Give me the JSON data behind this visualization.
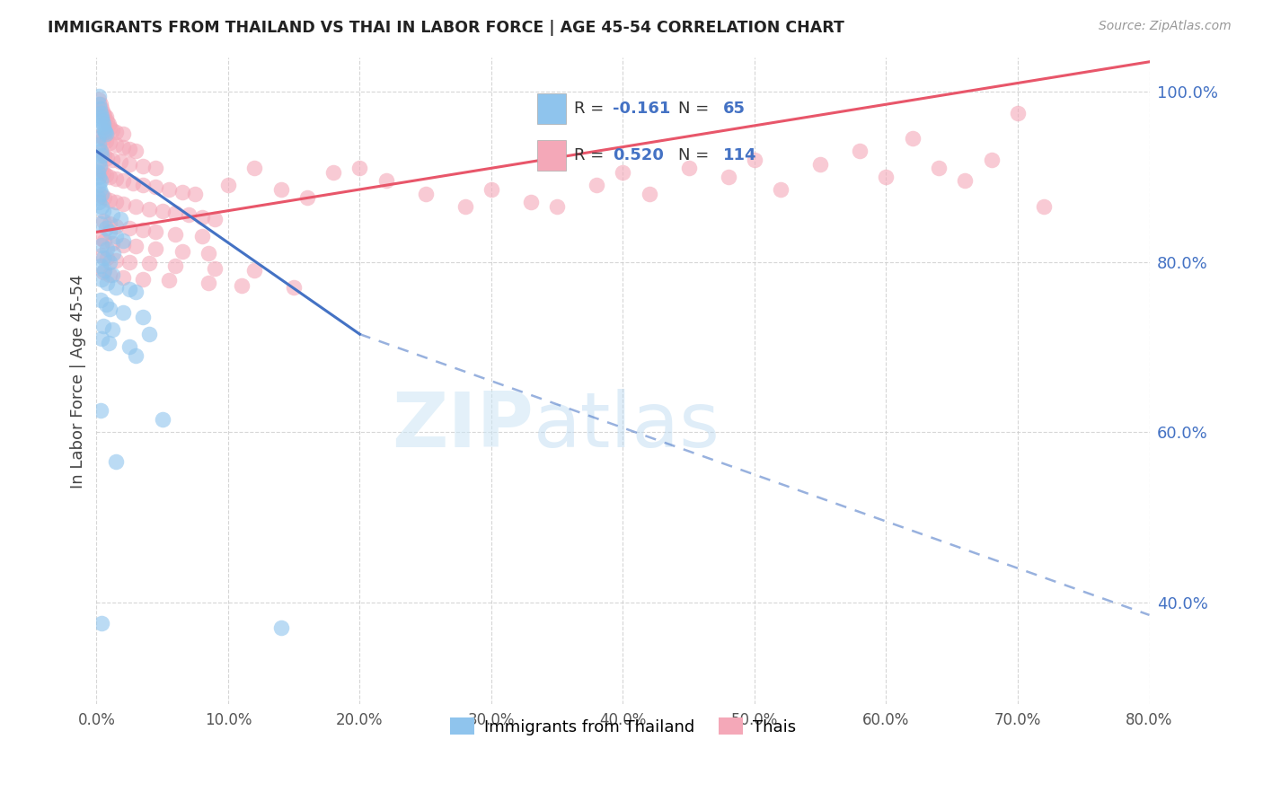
{
  "title": "IMMIGRANTS FROM THAILAND VS THAI IN LABOR FORCE | AGE 45-54 CORRELATION CHART",
  "source": "Source: ZipAtlas.com",
  "ylabel": "In Labor Force | Age 45-54",
  "legend_label1": "Immigrants from Thailand",
  "legend_label2": "Thais",
  "r1": "-0.161",
  "n1": "65",
  "r2": "0.520",
  "n2": "114",
  "xmin": 0.0,
  "xmax": 80.0,
  "ymin": 28.0,
  "ymax": 104.0,
  "yticks": [
    40.0,
    60.0,
    80.0,
    100.0
  ],
  "xticks": [
    0.0,
    10.0,
    20.0,
    30.0,
    40.0,
    50.0,
    60.0,
    70.0,
    80.0
  ],
  "color_blue": "#8FC4ED",
  "color_pink": "#F4A8B8",
  "line_color_blue": "#4472C4",
  "line_color_pink": "#E8566A",
  "watermark_zip": "ZIP",
  "watermark_atlas": "atlas",
  "blue_scatter": [
    [
      0.15,
      99.5
    ],
    [
      0.2,
      98.5
    ],
    [
      0.25,
      98.0
    ],
    [
      0.3,
      97.5
    ],
    [
      0.35,
      97.0
    ],
    [
      0.4,
      96.8
    ],
    [
      0.45,
      96.5
    ],
    [
      0.5,
      96.2
    ],
    [
      0.55,
      95.8
    ],
    [
      0.6,
      95.5
    ],
    [
      0.65,
      95.2
    ],
    [
      0.7,
      95.0
    ],
    [
      0.1,
      94.5
    ],
    [
      0.2,
      93.8
    ],
    [
      0.3,
      93.0
    ],
    [
      0.4,
      92.5
    ],
    [
      0.15,
      91.8
    ],
    [
      0.25,
      91.2
    ],
    [
      0.1,
      90.5
    ],
    [
      0.2,
      90.0
    ],
    [
      0.3,
      89.5
    ],
    [
      0.15,
      89.0
    ],
    [
      0.25,
      88.5
    ],
    [
      0.4,
      88.0
    ],
    [
      0.1,
      87.5
    ],
    [
      0.2,
      87.0
    ],
    [
      0.35,
      86.5
    ],
    [
      0.5,
      86.0
    ],
    [
      1.2,
      85.5
    ],
    [
      1.8,
      85.0
    ],
    [
      0.3,
      84.5
    ],
    [
      0.7,
      84.0
    ],
    [
      1.0,
      83.5
    ],
    [
      1.5,
      83.0
    ],
    [
      2.0,
      82.5
    ],
    [
      0.4,
      82.0
    ],
    [
      0.8,
      81.5
    ],
    [
      1.3,
      81.0
    ],
    [
      0.5,
      80.5
    ],
    [
      1.0,
      80.0
    ],
    [
      0.3,
      79.5
    ],
    [
      0.6,
      79.0
    ],
    [
      1.2,
      78.5
    ],
    [
      0.4,
      78.0
    ],
    [
      0.8,
      77.5
    ],
    [
      1.5,
      77.0
    ],
    [
      2.5,
      76.8
    ],
    [
      3.0,
      76.5
    ],
    [
      0.3,
      75.5
    ],
    [
      0.7,
      75.0
    ],
    [
      1.0,
      74.5
    ],
    [
      2.0,
      74.0
    ],
    [
      3.5,
      73.5
    ],
    [
      0.5,
      72.5
    ],
    [
      1.2,
      72.0
    ],
    [
      4.0,
      71.5
    ],
    [
      0.4,
      71.0
    ],
    [
      0.9,
      70.5
    ],
    [
      2.5,
      70.0
    ],
    [
      3.0,
      69.0
    ],
    [
      0.3,
      62.5
    ],
    [
      5.0,
      61.5
    ],
    [
      1.5,
      56.5
    ],
    [
      0.4,
      37.5
    ],
    [
      14.0,
      37.0
    ]
  ],
  "pink_scatter": [
    [
      0.2,
      99.0
    ],
    [
      0.3,
      98.5
    ],
    [
      0.4,
      98.0
    ],
    [
      0.5,
      97.5
    ],
    [
      0.6,
      97.2
    ],
    [
      0.7,
      97.0
    ],
    [
      0.8,
      96.5
    ],
    [
      0.9,
      96.2
    ],
    [
      1.0,
      95.8
    ],
    [
      1.2,
      95.5
    ],
    [
      1.5,
      95.2
    ],
    [
      2.0,
      95.0
    ],
    [
      0.3,
      94.8
    ],
    [
      0.5,
      94.5
    ],
    [
      0.7,
      94.2
    ],
    [
      1.0,
      94.0
    ],
    [
      1.5,
      93.8
    ],
    [
      2.0,
      93.5
    ],
    [
      2.5,
      93.2
    ],
    [
      3.0,
      93.0
    ],
    [
      0.4,
      92.8
    ],
    [
      0.6,
      92.5
    ],
    [
      0.8,
      92.2
    ],
    [
      1.2,
      92.0
    ],
    [
      1.8,
      91.8
    ],
    [
      2.5,
      91.5
    ],
    [
      3.5,
      91.2
    ],
    [
      4.5,
      91.0
    ],
    [
      0.3,
      90.8
    ],
    [
      0.5,
      90.5
    ],
    [
      0.7,
      90.2
    ],
    [
      1.0,
      90.0
    ],
    [
      1.5,
      89.8
    ],
    [
      2.0,
      89.5
    ],
    [
      2.8,
      89.2
    ],
    [
      3.5,
      89.0
    ],
    [
      4.5,
      88.8
    ],
    [
      5.5,
      88.5
    ],
    [
      6.5,
      88.2
    ],
    [
      7.5,
      88.0
    ],
    [
      0.4,
      87.8
    ],
    [
      0.6,
      87.5
    ],
    [
      1.0,
      87.2
    ],
    [
      1.5,
      87.0
    ],
    [
      2.0,
      86.8
    ],
    [
      3.0,
      86.5
    ],
    [
      4.0,
      86.2
    ],
    [
      5.0,
      86.0
    ],
    [
      6.0,
      85.8
    ],
    [
      7.0,
      85.5
    ],
    [
      8.0,
      85.2
    ],
    [
      9.0,
      85.0
    ],
    [
      0.5,
      84.8
    ],
    [
      1.0,
      84.5
    ],
    [
      1.5,
      84.2
    ],
    [
      2.5,
      84.0
    ],
    [
      3.5,
      83.8
    ],
    [
      4.5,
      83.5
    ],
    [
      6.0,
      83.2
    ],
    [
      8.0,
      83.0
    ],
    [
      0.3,
      82.8
    ],
    [
      0.6,
      82.5
    ],
    [
      1.2,
      82.2
    ],
    [
      2.0,
      82.0
    ],
    [
      3.0,
      81.8
    ],
    [
      4.5,
      81.5
    ],
    [
      6.5,
      81.2
    ],
    [
      8.5,
      81.0
    ],
    [
      0.4,
      80.8
    ],
    [
      0.8,
      80.5
    ],
    [
      1.5,
      80.2
    ],
    [
      2.5,
      80.0
    ],
    [
      4.0,
      79.8
    ],
    [
      6.0,
      79.5
    ],
    [
      9.0,
      79.2
    ],
    [
      12.0,
      79.0
    ],
    [
      0.5,
      78.8
    ],
    [
      1.0,
      78.5
    ],
    [
      2.0,
      78.2
    ],
    [
      3.5,
      78.0
    ],
    [
      5.5,
      77.8
    ],
    [
      8.5,
      77.5
    ],
    [
      11.0,
      77.2
    ],
    [
      15.0,
      77.0
    ],
    [
      18.0,
      90.5
    ],
    [
      20.0,
      91.0
    ],
    [
      22.0,
      89.5
    ],
    [
      25.0,
      88.0
    ],
    [
      28.0,
      86.5
    ],
    [
      30.0,
      88.5
    ],
    [
      33.0,
      87.0
    ],
    [
      35.0,
      86.5
    ],
    [
      38.0,
      89.0
    ],
    [
      40.0,
      90.5
    ],
    [
      42.0,
      88.0
    ],
    [
      45.0,
      91.0
    ],
    [
      48.0,
      90.0
    ],
    [
      50.0,
      92.0
    ],
    [
      52.0,
      88.5
    ],
    [
      55.0,
      91.5
    ],
    [
      58.0,
      93.0
    ],
    [
      60.0,
      90.0
    ],
    [
      62.0,
      94.5
    ],
    [
      64.0,
      91.0
    ],
    [
      66.0,
      89.5
    ],
    [
      68.0,
      92.0
    ],
    [
      70.0,
      97.5
    ],
    [
      72.0,
      86.5
    ],
    [
      10.0,
      89.0
    ],
    [
      12.0,
      91.0
    ],
    [
      14.0,
      88.5
    ],
    [
      16.0,
      87.5
    ]
  ],
  "blue_trend_solid_x1": 0.0,
  "blue_trend_solid_y1": 93.0,
  "blue_trend_solid_x2": 20.0,
  "blue_trend_solid_y2": 71.5,
  "blue_trend_dash_x2": 80.0,
  "blue_trend_dash_y2": 38.5,
  "pink_trend_x1": 0.0,
  "pink_trend_y1": 83.5,
  "pink_trend_x2": 80.0,
  "pink_trend_y2": 103.5
}
